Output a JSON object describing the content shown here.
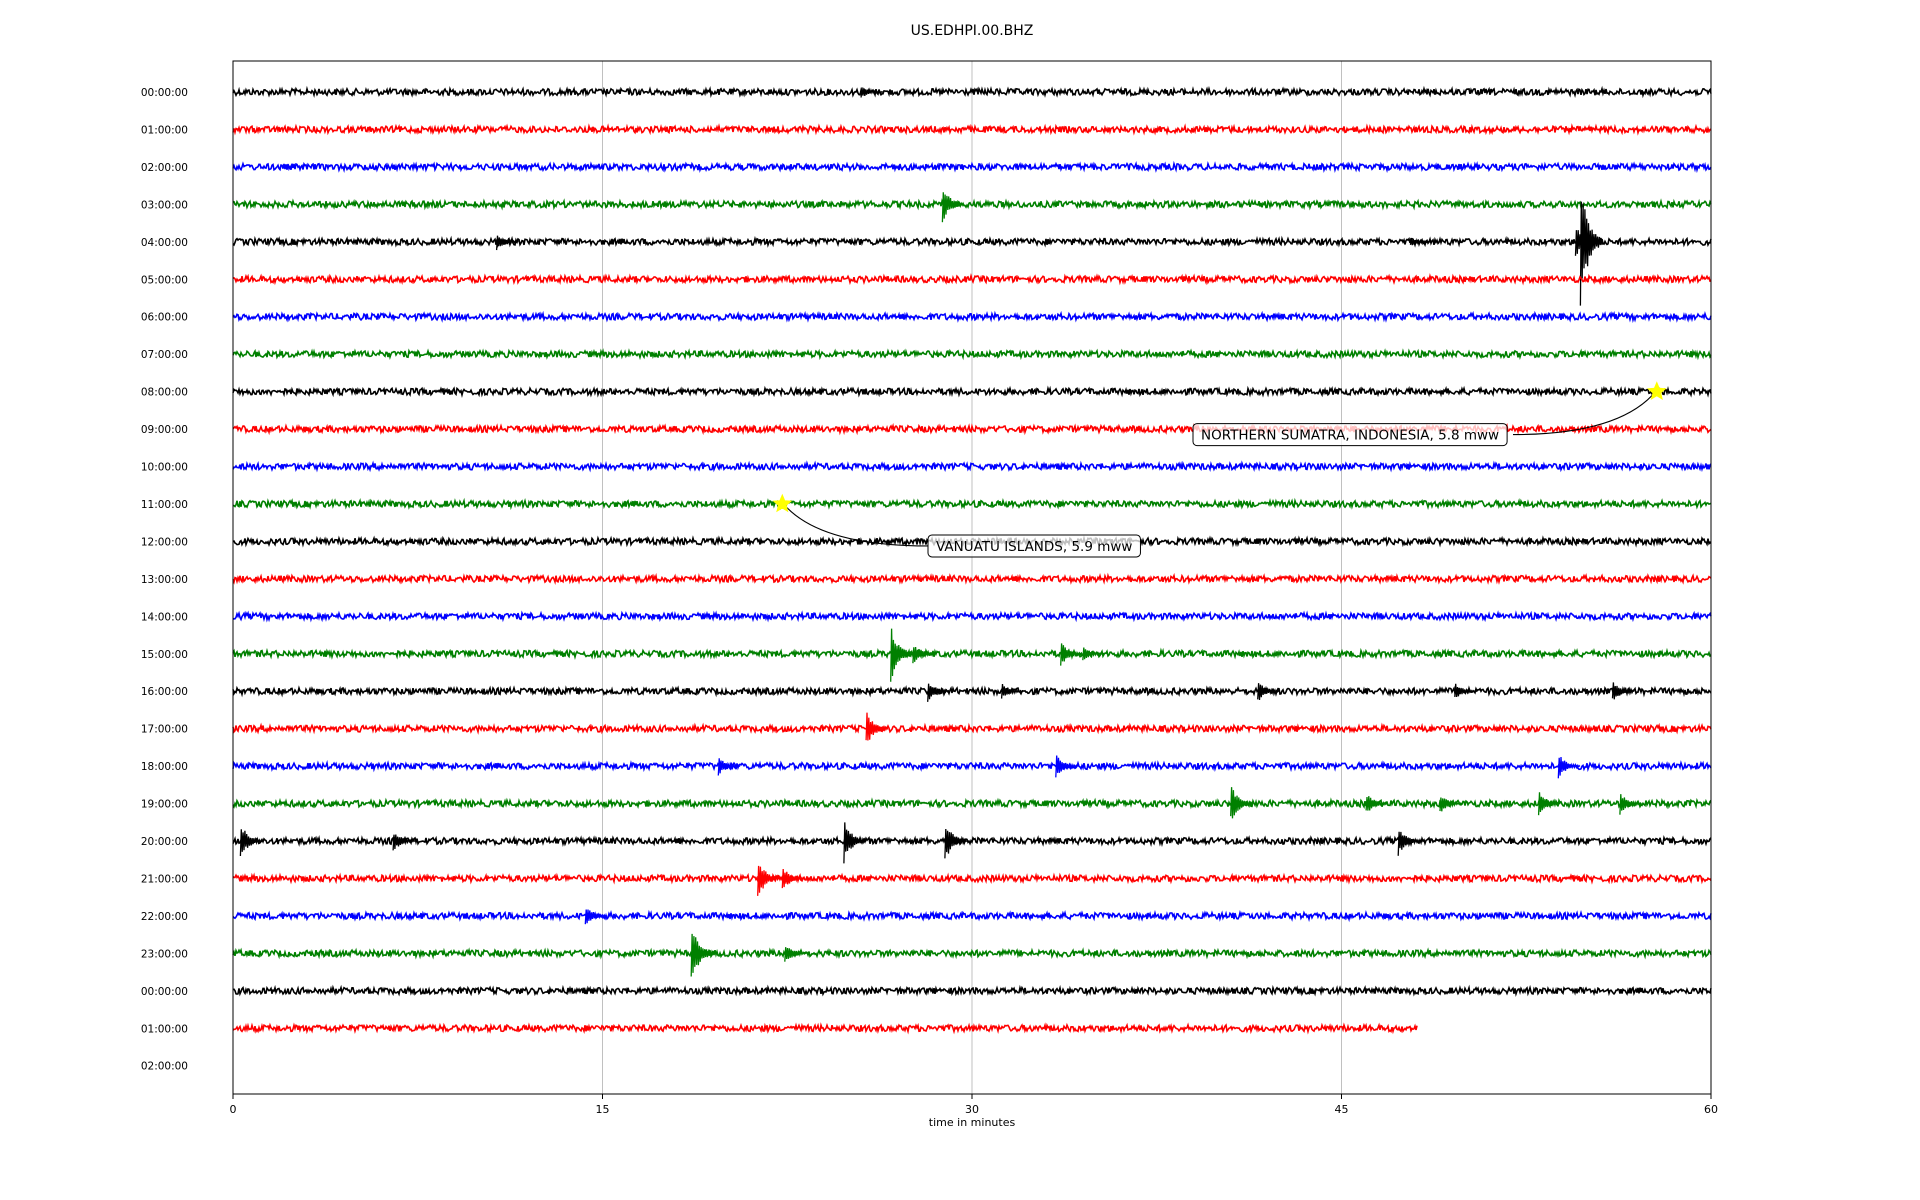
{
  "chart_data": {
    "type": "line",
    "title": "US.EDHPI.00.BHZ",
    "xlabel": "time in minutes",
    "ylabel": "",
    "xlim": [
      0,
      60
    ],
    "x_ticks": [
      "0",
      "15",
      "30",
      "45",
      "60"
    ],
    "x_tick_values": [
      0,
      15,
      30,
      45,
      60
    ],
    "grid": "vertical",
    "trace_colors": [
      "#000000",
      "#ff0000",
      "#0000ff",
      "#008000"
    ],
    "rows": [
      {
        "label": "00:00:00",
        "end_minute": 60,
        "events": [
          {
            "t": 25.5,
            "amp": 0.35
          }
        ]
      },
      {
        "label": "01:00:00",
        "end_minute": 60,
        "events": []
      },
      {
        "label": "02:00:00",
        "end_minute": 60,
        "events": []
      },
      {
        "label": "03:00:00",
        "end_minute": 60,
        "events": [
          {
            "t": 28.8,
            "amp": 1.0
          }
        ]
      },
      {
        "label": "04:00:00",
        "end_minute": 60,
        "events": [
          {
            "t": 10.7,
            "amp": 0.45
          },
          {
            "t": 47.8,
            "amp": 0.25
          },
          {
            "t": 54.5,
            "amp": 0.9
          },
          {
            "t": 54.7,
            "amp": 3.5
          }
        ]
      },
      {
        "label": "05:00:00",
        "end_minute": 60,
        "events": []
      },
      {
        "label": "06:00:00",
        "end_minute": 60,
        "events": []
      },
      {
        "label": "07:00:00",
        "end_minute": 60,
        "events": []
      },
      {
        "label": "08:00:00",
        "end_minute": 60,
        "events": []
      },
      {
        "label": "09:00:00",
        "end_minute": 60,
        "events": []
      },
      {
        "label": "10:00:00",
        "end_minute": 60,
        "events": []
      },
      {
        "label": "11:00:00",
        "end_minute": 60,
        "events": []
      },
      {
        "label": "12:00:00",
        "end_minute": 60,
        "events": []
      },
      {
        "label": "13:00:00",
        "end_minute": 60,
        "events": []
      },
      {
        "label": "14:00:00",
        "end_minute": 60,
        "events": []
      },
      {
        "label": "15:00:00",
        "end_minute": 60,
        "events": [
          {
            "t": 26.7,
            "amp": 1.6
          },
          {
            "t": 27.6,
            "amp": 0.6
          },
          {
            "t": 33.6,
            "amp": 0.7
          },
          {
            "t": 34.5,
            "amp": 0.4
          }
        ]
      },
      {
        "label": "16:00:00",
        "end_minute": 60,
        "events": [
          {
            "t": 28.2,
            "amp": 0.6
          },
          {
            "t": 31.2,
            "amp": 0.45
          },
          {
            "t": 41.6,
            "amp": 0.6
          },
          {
            "t": 49.6,
            "amp": 0.45
          },
          {
            "t": 56.0,
            "amp": 0.6
          }
        ]
      },
      {
        "label": "17:00:00",
        "end_minute": 60,
        "events": [
          {
            "t": 25.7,
            "amp": 1.0
          }
        ]
      },
      {
        "label": "18:00:00",
        "end_minute": 60,
        "events": [
          {
            "t": 19.7,
            "amp": 0.55
          },
          {
            "t": 33.4,
            "amp": 0.65
          },
          {
            "t": 53.8,
            "amp": 0.7
          }
        ]
      },
      {
        "label": "19:00:00",
        "end_minute": 60,
        "events": [
          {
            "t": 40.5,
            "amp": 1.1
          },
          {
            "t": 46.0,
            "amp": 0.6
          },
          {
            "t": 49.0,
            "amp": 0.6
          },
          {
            "t": 53.0,
            "amp": 0.7
          },
          {
            "t": 56.3,
            "amp": 0.6
          }
        ]
      },
      {
        "label": "20:00:00",
        "end_minute": 60,
        "events": [
          {
            "t": 0.3,
            "amp": 1.0
          },
          {
            "t": 6.5,
            "amp": 0.6
          },
          {
            "t": 24.8,
            "amp": 1.2
          },
          {
            "t": 28.9,
            "amp": 1.1
          },
          {
            "t": 47.3,
            "amp": 0.8
          }
        ]
      },
      {
        "label": "21:00:00",
        "end_minute": 60,
        "events": [
          {
            "t": 21.3,
            "amp": 1.1
          },
          {
            "t": 22.3,
            "amp": 0.7
          }
        ]
      },
      {
        "label": "22:00:00",
        "end_minute": 60,
        "events": [
          {
            "t": 14.3,
            "amp": 0.6
          }
        ]
      },
      {
        "label": "23:00:00",
        "end_minute": 60,
        "events": [
          {
            "t": 18.6,
            "amp": 1.8
          },
          {
            "t": 22.4,
            "amp": 0.6
          }
        ]
      },
      {
        "label": "00:00:00",
        "end_minute": 60,
        "events": []
      },
      {
        "label": "01:00:00",
        "end_minute": 48.1,
        "events": []
      },
      {
        "label": "02:00:00",
        "end_minute": 0,
        "events": []
      }
    ],
    "annotations": [
      {
        "text": "NORTHERN SUMATRA, INDONESIA, 5.8 mww",
        "row": 8,
        "minute": 57.8
      },
      {
        "text": "VANUATU ISLANDS, 5.9 mww",
        "row": 11,
        "minute": 22.3
      }
    ],
    "marker_color": "#ffff00"
  }
}
